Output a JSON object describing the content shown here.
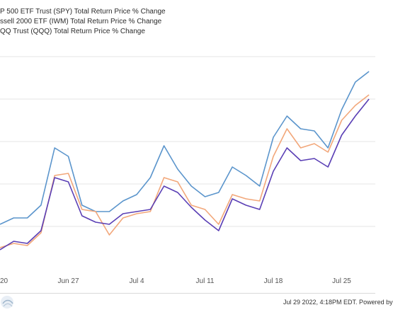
{
  "legend": {
    "items": [
      {
        "label": "P 500 ETF Trust (SPY) Total Return Price % Change"
      },
      {
        "label": "ssell 2000 ETF (IWM) Total Return Price % Change"
      },
      {
        "label": "QQ Trust (QQQ) Total Return Price % Change"
      }
    ]
  },
  "footer": {
    "text": "Jul 29 2022, 4:18PM EDT. Powered by"
  },
  "colors": {
    "spy": "#5b95cc",
    "iwm": "#f2a77a",
    "qqq": "#5a3fb5",
    "grid": "#e6e6e6"
  },
  "chart_data": {
    "type": "line",
    "title": "",
    "xlabel": "",
    "ylabel": "",
    "x_tick_labels": [
      {
        "label": "20",
        "index": 0
      },
      {
        "label": "Jun 27",
        "index": 5
      },
      {
        "label": "Jul 4",
        "index": 10
      },
      {
        "label": "Jul 11",
        "index": 15
      },
      {
        "label": "Jul 18",
        "index": 20
      },
      {
        "label": "Jul 25",
        "index": 25
      }
    ],
    "y_gridlines": [
      2,
      4,
      6,
      8,
      10
    ],
    "ylim": [
      0,
      11
    ],
    "grid": true,
    "series": [
      {
        "key": "spy",
        "name": "P 500 ETF Trust (SPY) Total Return Price % Change",
        "values": [
          2.1,
          2.4,
          2.4,
          3.0,
          5.7,
          5.3,
          3.0,
          2.7,
          2.7,
          3.2,
          3.5,
          4.3,
          5.8,
          4.7,
          3.9,
          3.4,
          3.6,
          4.8,
          4.4,
          3.9,
          6.2,
          7.2,
          6.6,
          6.5,
          5.7,
          7.5,
          8.8,
          9.3
        ]
      },
      {
        "key": "iwm",
        "name": "ssell 2000 ETF (IWM) Total Return Price % Change",
        "values": [
          1.0,
          1.2,
          1.1,
          1.7,
          4.4,
          4.5,
          2.8,
          2.7,
          1.6,
          2.4,
          2.6,
          2.7,
          4.3,
          4.1,
          3.0,
          2.8,
          2.1,
          3.5,
          3.3,
          3.2,
          5.3,
          6.6,
          5.7,
          5.9,
          5.5,
          7.0,
          7.7,
          8.2
        ]
      },
      {
        "key": "qqq",
        "name": "QQ Trust (QQQ) Total Return Price % Change",
        "values": [
          0.9,
          1.3,
          1.2,
          1.8,
          4.3,
          4.1,
          2.5,
          2.2,
          2.1,
          2.6,
          2.7,
          2.8,
          3.9,
          3.6,
          2.9,
          2.3,
          1.8,
          3.3,
          3.0,
          2.8,
          4.6,
          5.7,
          5.1,
          5.2,
          4.8,
          6.3,
          7.2,
          8.0
        ]
      }
    ]
  }
}
